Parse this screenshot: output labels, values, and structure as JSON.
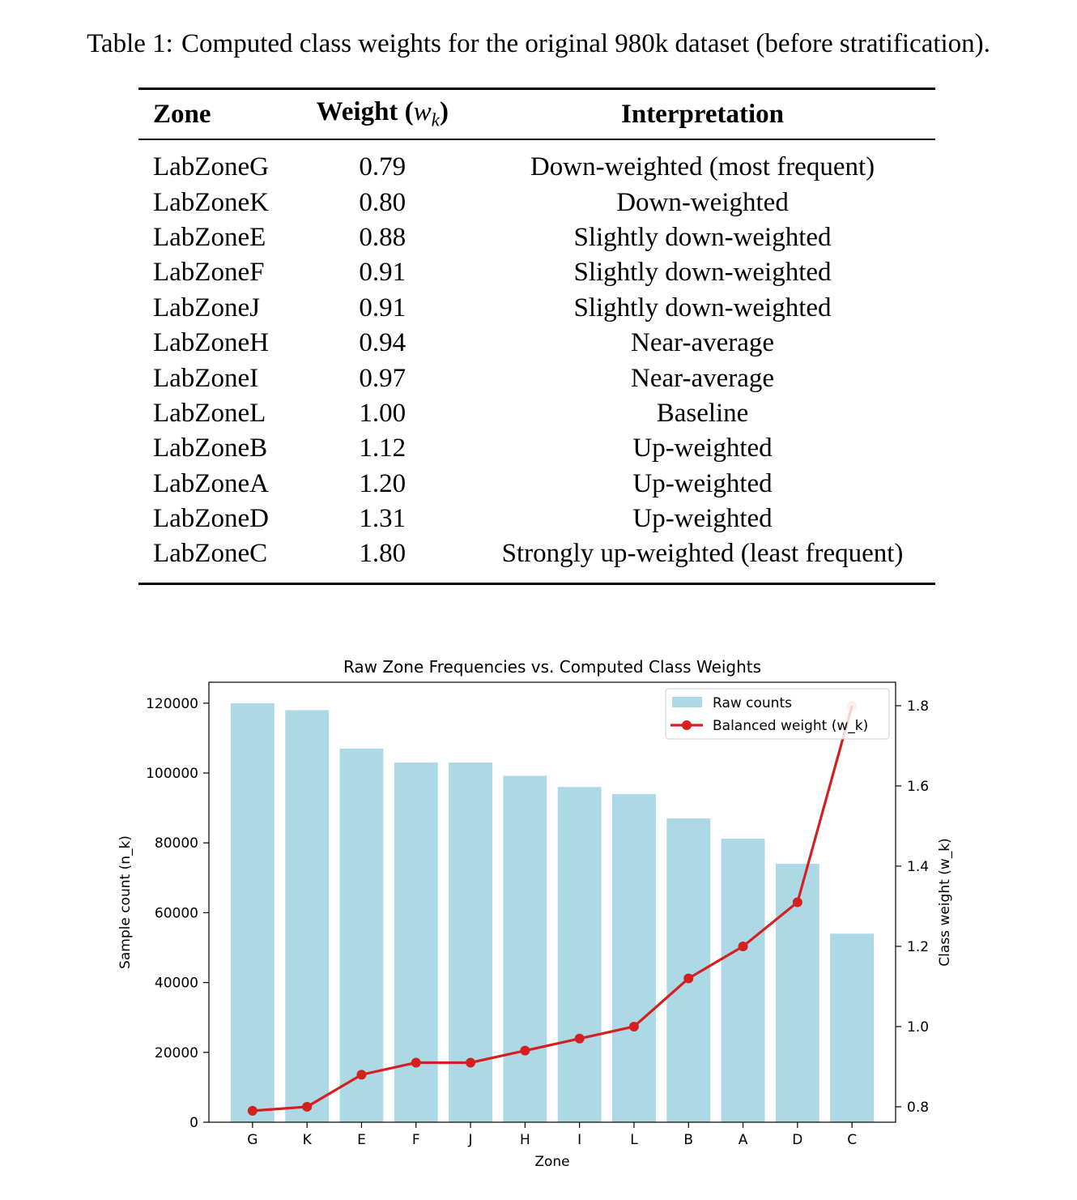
{
  "caption": {
    "label": "Table 1:",
    "text": "Computed class weights for the original 980k dataset (before stratification)."
  },
  "table": {
    "headers": {
      "zone": "Zone",
      "weight": "Weight (",
      "weight_symbol": "w",
      "weight_sub": "k",
      "weight_close": ")",
      "interpretation": "Interpretation"
    },
    "rows": [
      {
        "zone": "LabZoneG",
        "weight": "0.79",
        "interpretation": "Down-weighted (most frequent)"
      },
      {
        "zone": "LabZoneK",
        "weight": "0.80",
        "interpretation": "Down-weighted"
      },
      {
        "zone": "LabZoneE",
        "weight": "0.88",
        "interpretation": "Slightly down-weighted"
      },
      {
        "zone": "LabZoneF",
        "weight": "0.91",
        "interpretation": "Slightly down-weighted"
      },
      {
        "zone": "LabZoneJ",
        "weight": "0.91",
        "interpretation": "Slightly down-weighted"
      },
      {
        "zone": "LabZoneH",
        "weight": "0.94",
        "interpretation": "Near-average"
      },
      {
        "zone": "LabZoneI",
        "weight": "0.97",
        "interpretation": "Near-average"
      },
      {
        "zone": "LabZoneL",
        "weight": "1.00",
        "interpretation": "Baseline"
      },
      {
        "zone": "LabZoneB",
        "weight": "1.12",
        "interpretation": "Up-weighted"
      },
      {
        "zone": "LabZoneA",
        "weight": "1.20",
        "interpretation": "Up-weighted"
      },
      {
        "zone": "LabZoneD",
        "weight": "1.31",
        "interpretation": "Up-weighted"
      },
      {
        "zone": "LabZoneC",
        "weight": "1.80",
        "interpretation": "Strongly up-weighted (least frequent)"
      }
    ]
  },
  "chart_data": {
    "type": "bar",
    "title": "Raw Zone Frequencies vs. Computed Class Weights",
    "xlabel": "Zone",
    "ylabel": "Sample count (n_k)",
    "ylabel_right": "Class weight (w_k)",
    "categories": [
      "G",
      "K",
      "E",
      "F",
      "J",
      "H",
      "I",
      "L",
      "B",
      "A",
      "D",
      "C"
    ],
    "ylim": [
      0,
      126000
    ],
    "ylim_right": [
      0.7615,
      1.8585
    ],
    "yticks": [
      0,
      20000,
      40000,
      60000,
      80000,
      100000,
      120000
    ],
    "yticks_right": [
      0.8,
      1.0,
      1.2,
      1.4,
      1.6,
      1.8
    ],
    "legend_position": "top-right",
    "grid": false,
    "series": [
      {
        "name": "Raw counts",
        "type": "bar",
        "axis": "left",
        "color": "#add8e6",
        "values": [
          120000,
          118000,
          107000,
          103000,
          103000,
          99200,
          96000,
          94000,
          87000,
          81200,
          74000,
          54000
        ]
      },
      {
        "name": "Balanced weight (w_k)",
        "type": "line",
        "axis": "right",
        "color": "#d62020",
        "values": [
          0.79,
          0.8,
          0.88,
          0.91,
          0.91,
          0.94,
          0.97,
          1.0,
          1.12,
          1.2,
          1.31,
          1.8
        ]
      }
    ]
  }
}
